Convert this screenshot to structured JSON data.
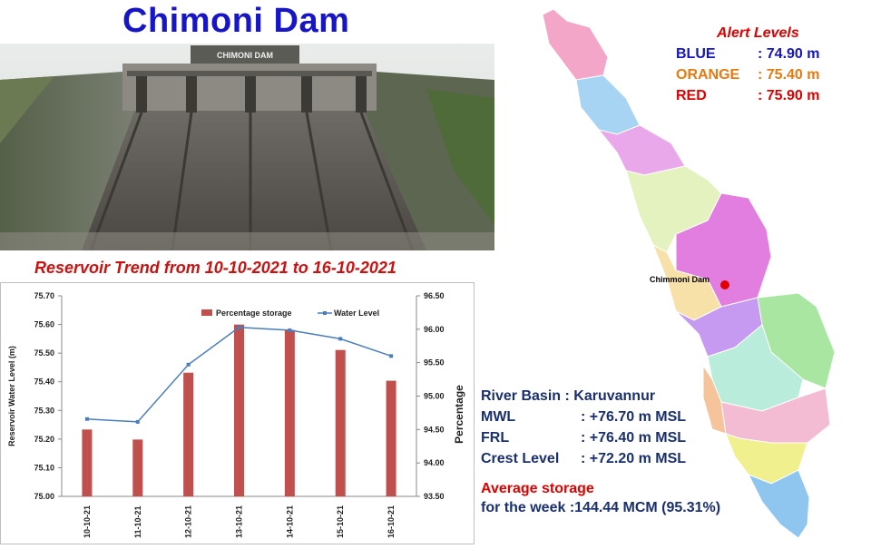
{
  "title": "Chimoni Dam",
  "photo": {
    "sign_text": "CHIMONI DAM"
  },
  "trend_title": "Reservoir Trend from 10-10-2021 to 16-10-2021",
  "alert": {
    "title": "Alert Levels",
    "levels": [
      {
        "name": "BLUE",
        "value": ": 74.90 m",
        "color": "#1515c0"
      },
      {
        "name": "ORANGE",
        "value": ": 75.40 m",
        "color": "#e87a10"
      },
      {
        "name": "RED",
        "value": ": 75.90 m",
        "color": "#e00000"
      }
    ]
  },
  "info": {
    "basin_label": "River Basin",
    "basin_value": ": Karuvannur",
    "rows": [
      {
        "k": "MWL",
        "v": ": +76.70 m MSL"
      },
      {
        "k": "FRL",
        "v": ": +76.40 m MSL"
      },
      {
        "k": "Crest Level",
        "v": ": +72.20 m MSL"
      }
    ],
    "avg_title": "Average storage",
    "avg_label": "for the week",
    "avg_value": ":144.44 MCM (95.31%)"
  },
  "map": {
    "dam_label": "Chimmoni Dam"
  },
  "chart_data": {
    "type": "bar+line",
    "categories": [
      "10-10-21",
      "11-10-21",
      "12-10-21",
      "13-10-21",
      "14-10-21",
      "15-10-21",
      "16-10-21"
    ],
    "series": [
      {
        "name": "Percentage storage",
        "type": "bar",
        "axis": "right",
        "color": "#c0504d",
        "values": [
          94.5,
          94.35,
          95.35,
          96.07,
          95.99,
          95.69,
          95.23
        ]
      },
      {
        "name": "Water Level",
        "type": "line",
        "axis": "left",
        "color": "#4a7ebb",
        "values": [
          75.27,
          75.26,
          75.46,
          75.59,
          75.58,
          75.55,
          75.49
        ]
      }
    ],
    "ylabel_left": "Reservoir Water Level (m)",
    "ylabel_right": "Percentage",
    "ylim_left": [
      75.0,
      75.7
    ],
    "yticks_left": [
      "75.00",
      "75.10",
      "75.20",
      "75.30",
      "75.40",
      "75.50",
      "75.60",
      "75.70"
    ],
    "ylim_right": [
      93.5,
      96.5
    ],
    "yticks_right": [
      "93.50",
      "94.00",
      "94.50",
      "95.00",
      "95.50",
      "96.00",
      "96.50"
    ],
    "legend_position": "top-right",
    "grid": false
  }
}
